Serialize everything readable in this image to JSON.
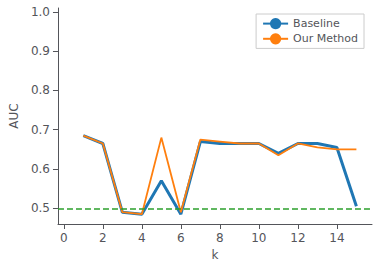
{
  "chart_data": {
    "type": "line",
    "x": [
      1,
      2,
      3,
      4,
      5,
      6,
      7,
      8,
      9,
      10,
      11,
      12,
      13,
      14,
      15
    ],
    "series": [
      {
        "name": "Baseline",
        "color": "#1f77b4",
        "values": [
          0.685,
          0.665,
          0.49,
          0.485,
          0.57,
          0.485,
          0.67,
          0.665,
          0.665,
          0.665,
          0.64,
          0.665,
          0.665,
          0.655,
          0.505
        ]
      },
      {
        "name": "Our Method",
        "color": "#ff7f0e",
        "values": [
          0.685,
          0.665,
          0.49,
          0.485,
          0.68,
          0.49,
          0.675,
          0.67,
          0.665,
          0.665,
          0.635,
          0.665,
          0.655,
          0.65,
          0.65
        ]
      }
    ],
    "reference_lines": [
      {
        "y": 0.5,
        "color": "#2ca02c",
        "line_style": "dashed"
      }
    ],
    "xlabel": "k",
    "ylabel": "AUC",
    "xlim": [
      -0.3,
      15.8
    ],
    "xticks": [
      0,
      2,
      4,
      6,
      8,
      10,
      12,
      14
    ],
    "ylim": [
      0.46,
      1.01
    ],
    "yticks": [
      0.5,
      0.6,
      0.7,
      0.8,
      0.9,
      {
        "value": 1.0,
        "label": "1.0"
      }
    ],
    "grid": false,
    "legend": "upper right"
  }
}
